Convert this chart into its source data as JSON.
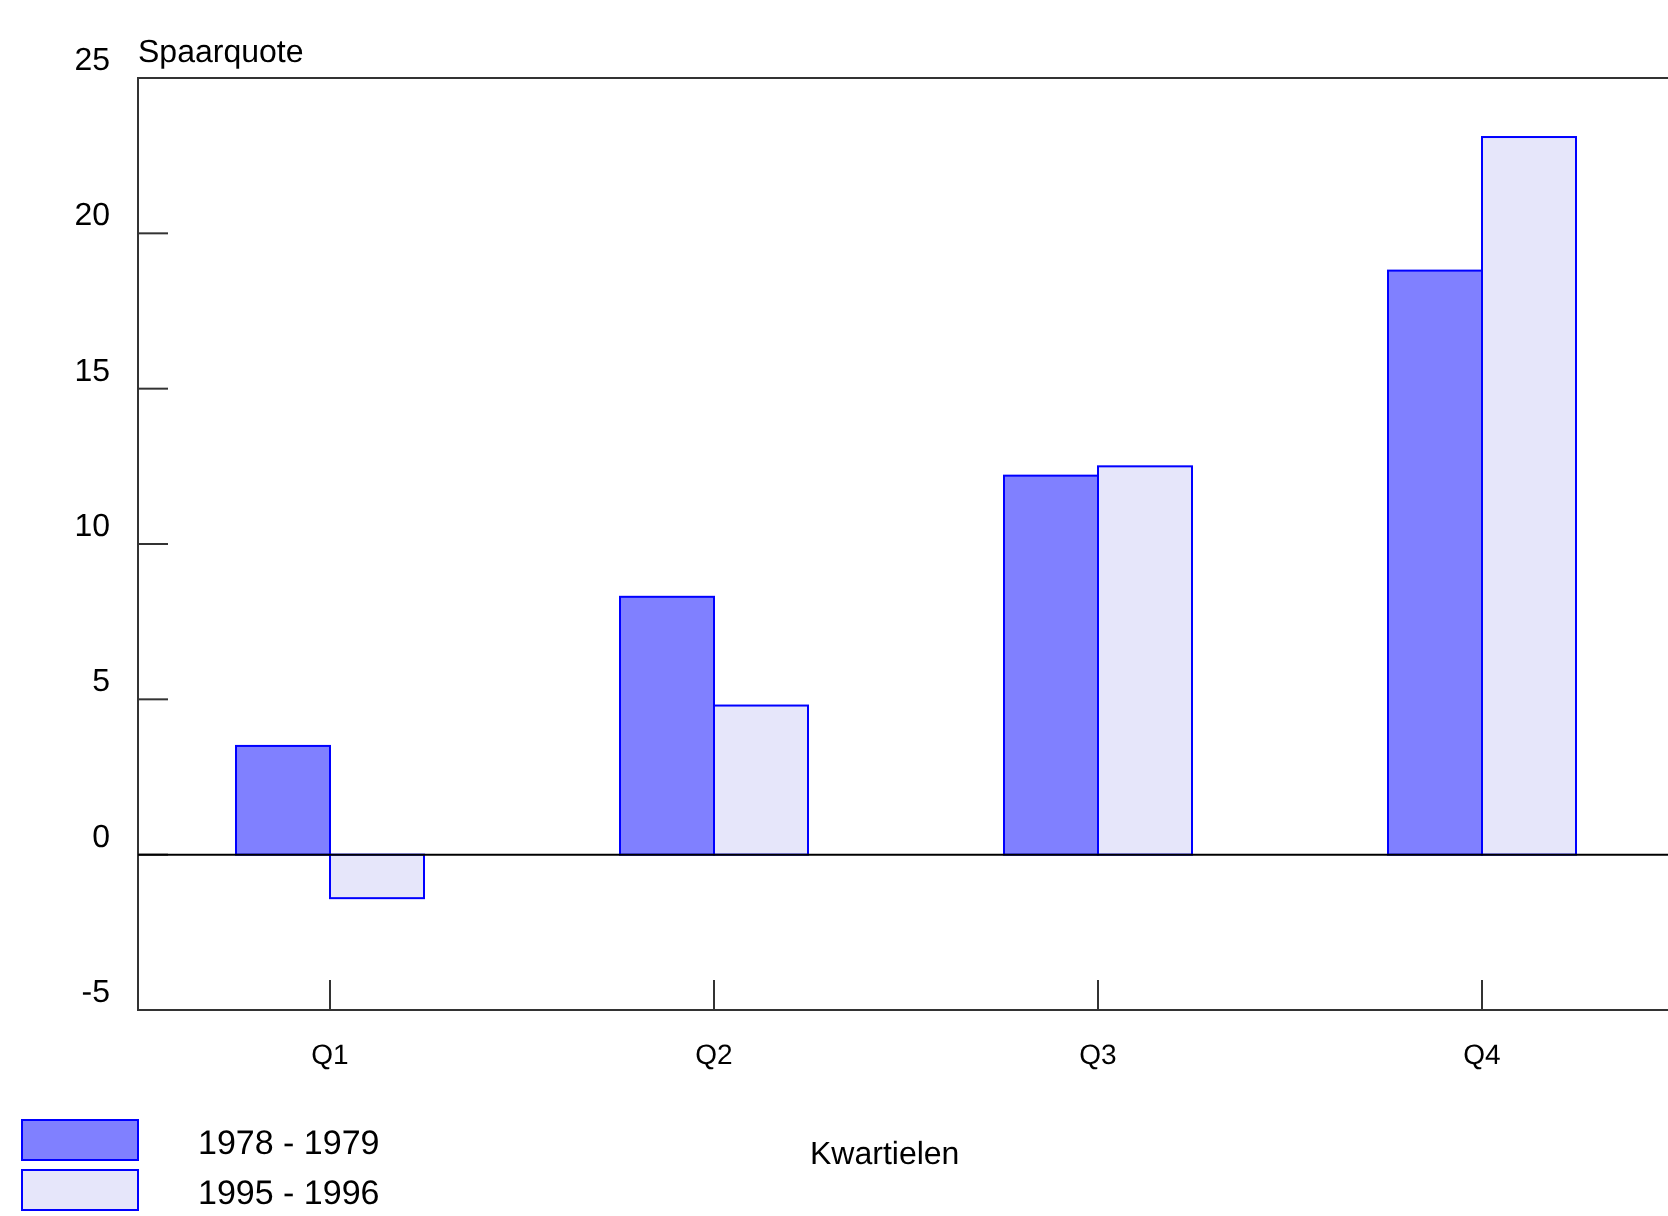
{
  "chart_data": {
    "type": "bar",
    "ylabel": "Spaarquote",
    "xlabel": "Kwartielen",
    "categories": [
      "Q1",
      "Q2",
      "Q3",
      "Q4"
    ],
    "series": [
      {
        "name": "1978 - 1979",
        "color": "#8080ff",
        "values": [
          3.5,
          8.3,
          12.2,
          18.8
        ]
      },
      {
        "name": "1995 - 1996",
        "color": "#e6e6fa",
        "values": [
          -1.4,
          4.8,
          12.5,
          23.1
        ]
      }
    ],
    "ylim": [
      -5,
      25
    ],
    "yticks": [
      -5,
      0,
      5,
      10,
      15,
      20,
      25
    ],
    "legend": "bottom left"
  }
}
